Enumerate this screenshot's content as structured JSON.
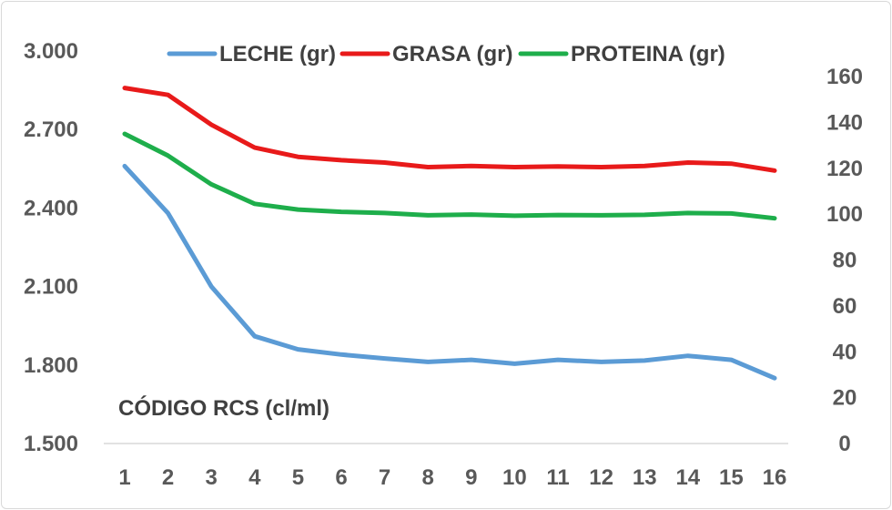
{
  "chart_data": {
    "type": "line",
    "categories": [
      "1",
      "2",
      "3",
      "4",
      "5",
      "6",
      "7",
      "8",
      "9",
      "10",
      "11",
      "12",
      "13",
      "14",
      "15",
      "16"
    ],
    "series": [
      {
        "name": "LECHE (gr)",
        "axis": "left",
        "color": "#5b9bd5",
        "values": [
          2560,
          2380,
          2100,
          1910,
          1860,
          1840,
          1825,
          1812,
          1820,
          1805,
          1820,
          1812,
          1817,
          1835,
          1820,
          1750
        ]
      },
      {
        "name": "GRASA (gr)",
        "axis": "right",
        "color": "#e81a1a",
        "values": [
          155,
          152,
          139,
          129,
          125,
          123.5,
          122.5,
          120.5,
          121,
          120.5,
          120.8,
          120.5,
          121,
          122.5,
          122,
          119
        ]
      },
      {
        "name": "PROTEINA (gr)",
        "axis": "right",
        "color": "#1eae4b",
        "values": [
          135,
          125.5,
          113,
          104.5,
          102,
          101,
          100.5,
          99.5,
          99.8,
          99.3,
          99.6,
          99.5,
          99.7,
          100.5,
          100.3,
          98.2
        ]
      }
    ],
    "y_left": {
      "min": 1500,
      "max": 3000,
      "step": 300,
      "tick_labels": [
        "1.500",
        "1.800",
        "2.100",
        "2.400",
        "2.700",
        "3.000"
      ]
    },
    "y_right": {
      "min": 0,
      "max": 160,
      "step": 20,
      "tick_labels": [
        "0",
        "20",
        "40",
        "60",
        "80",
        "100",
        "120",
        "140",
        "160"
      ]
    },
    "annotation": "CÓDIGO RCS (cl/ml)",
    "legend_position": "top",
    "grid": false
  }
}
